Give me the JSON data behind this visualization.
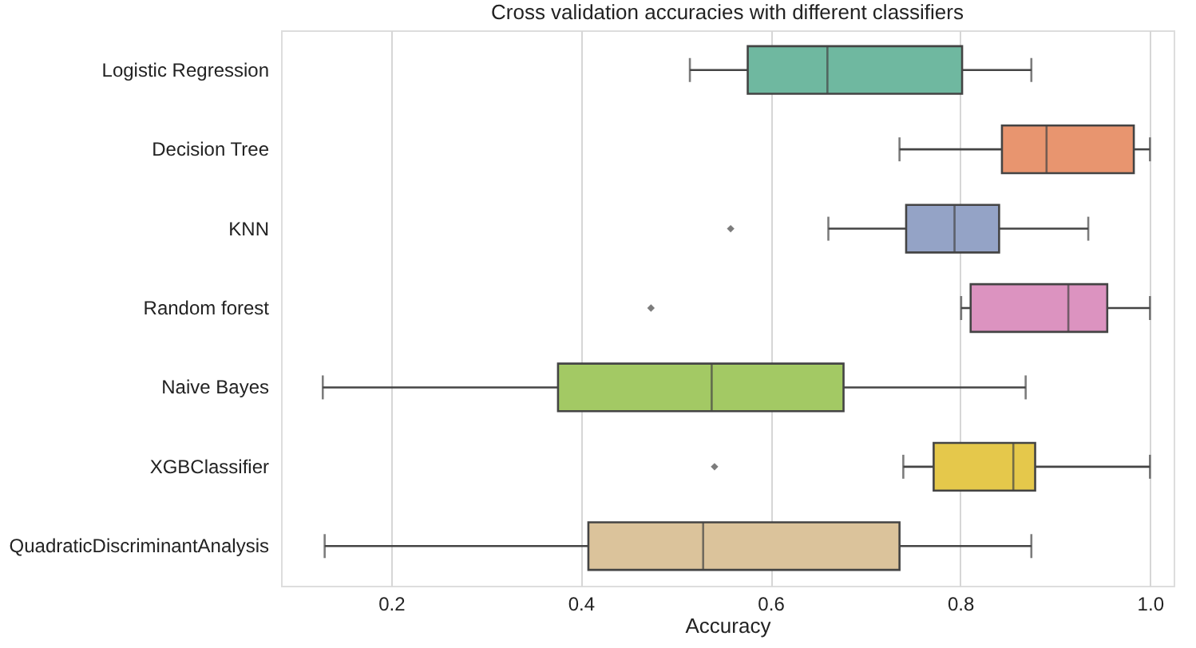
{
  "chart_data": {
    "type": "box",
    "title": "Cross validation accuracies with different classifiers",
    "xlabel": "Accuracy",
    "categories": [
      "Logistic Regression",
      "Decision Tree",
      "KNN",
      "Random forest",
      "Naive Bayes",
      "XGBClassifier",
      "QuadraticDiscriminantAnalysis"
    ],
    "orientation": "horizontal",
    "boxes": [
      {
        "low": 0.515,
        "q1": 0.576,
        "median": 0.66,
        "q3": 0.802,
        "high": 0.875
      },
      {
        "low": 0.736,
        "q1": 0.844,
        "median": 0.891,
        "q3": 0.983,
        "high": 1.0
      },
      {
        "low": 0.661,
        "q1": 0.743,
        "median": 0.794,
        "q3": 0.841,
        "high": 0.935,
        "outliers": [
          0.558
        ]
      },
      {
        "low": 0.801,
        "q1": 0.811,
        "median": 0.914,
        "q3": 0.955,
        "high": 1.0,
        "outliers": [
          0.474
        ]
      },
      {
        "low": 0.128,
        "q1": 0.376,
        "median": 0.538,
        "q3": 0.677,
        "high": 0.869
      },
      {
        "low": 0.74,
        "q1": 0.772,
        "median": 0.856,
        "q3": 0.879,
        "high": 1.0,
        "outliers": [
          0.541
        ]
      },
      {
        "low": 0.13,
        "q1": 0.408,
        "median": 0.529,
        "q3": 0.736,
        "high": 0.875
      }
    ],
    "colors": [
      "#6fb8a0",
      "#e8956f",
      "#94a3c6",
      "#dc93c0",
      "#a3c964",
      "#e5c84b",
      "#dbc39b"
    ],
    "xlim": [
      0.084,
      1.025
    ],
    "xticks": [
      0.2,
      0.4,
      0.6,
      0.8,
      {
        "value": 1,
        "label": "1.0"
      }
    ],
    "grid": "x",
    "marker": "diamond"
  }
}
